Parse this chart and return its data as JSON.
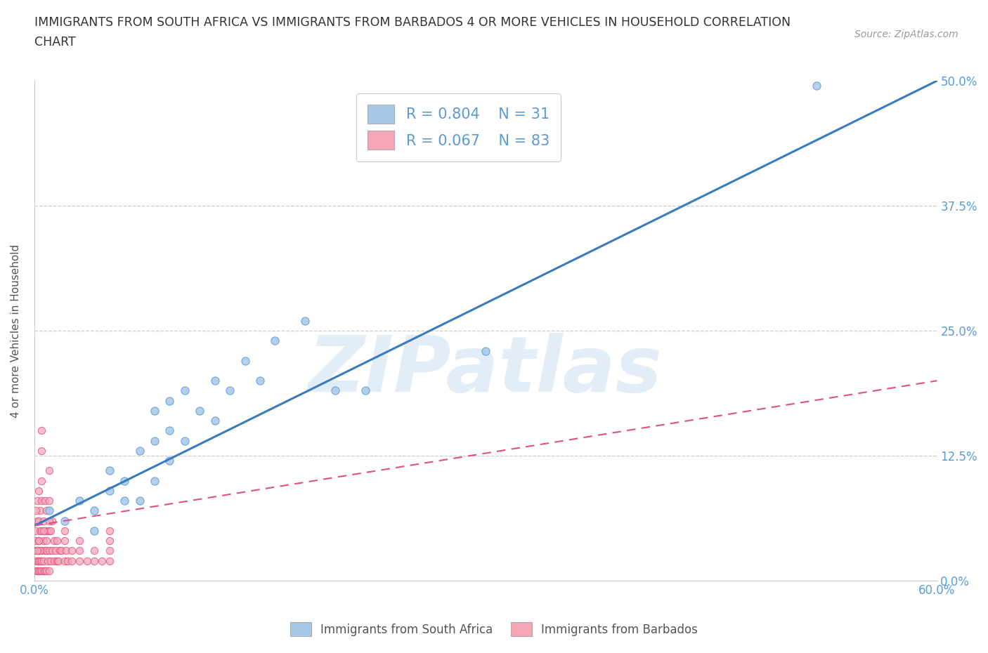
{
  "title_line1": "IMMIGRANTS FROM SOUTH AFRICA VS IMMIGRANTS FROM BARBADOS 4 OR MORE VEHICLES IN HOUSEHOLD CORRELATION",
  "title_line2": "CHART",
  "source": "Source: ZipAtlas.com",
  "ylabel": "4 or more Vehicles in Household",
  "xlim": [
    0.0,
    0.6
  ],
  "ylim": [
    0.0,
    0.5
  ],
  "xticks": [
    0.0,
    0.1,
    0.2,
    0.3,
    0.4,
    0.5,
    0.6
  ],
  "xtick_labels": [
    "0.0%",
    "",
    "",
    "",
    "",
    "",
    "60.0%"
  ],
  "yticks": [
    0.0,
    0.125,
    0.25,
    0.375,
    0.5
  ],
  "ytick_labels": [
    "0.0%",
    "12.5%",
    "25.0%",
    "37.5%",
    "50.0%"
  ],
  "blue_fill": "#a8c8e8",
  "blue_edge": "#5b9bd5",
  "pink_fill": "#f4a7b9",
  "pink_edge": "#e05080",
  "blue_line_color": "#3a7abf",
  "pink_line_color": "#e06080",
  "legend_R1": "R = 0.804",
  "legend_N1": "N = 31",
  "legend_R2": "R = 0.067",
  "legend_N2": "N = 83",
  "watermark": "ZIPatlas",
  "label1": "Immigrants from South Africa",
  "label2": "Immigrants from Barbados",
  "blue_x": [
    0.01,
    0.02,
    0.03,
    0.04,
    0.04,
    0.05,
    0.05,
    0.06,
    0.06,
    0.07,
    0.07,
    0.08,
    0.08,
    0.08,
    0.09,
    0.09,
    0.09,
    0.1,
    0.1,
    0.11,
    0.12,
    0.12,
    0.13,
    0.14,
    0.15,
    0.16,
    0.18,
    0.2,
    0.22,
    0.3,
    0.52
  ],
  "blue_y": [
    0.07,
    0.06,
    0.08,
    0.05,
    0.07,
    0.09,
    0.11,
    0.08,
    0.1,
    0.08,
    0.13,
    0.1,
    0.14,
    0.17,
    0.12,
    0.15,
    0.18,
    0.14,
    0.19,
    0.17,
    0.16,
    0.2,
    0.19,
    0.22,
    0.2,
    0.24,
    0.26,
    0.19,
    0.19,
    0.23,
    0.495
  ],
  "pink_x": [
    0.001,
    0.001,
    0.001,
    0.001,
    0.001,
    0.002,
    0.002,
    0.002,
    0.002,
    0.002,
    0.003,
    0.003,
    0.003,
    0.003,
    0.003,
    0.003,
    0.004,
    0.004,
    0.004,
    0.004,
    0.005,
    0.005,
    0.005,
    0.005,
    0.005,
    0.005,
    0.005,
    0.005,
    0.006,
    0.006,
    0.006,
    0.006,
    0.007,
    0.007,
    0.007,
    0.007,
    0.008,
    0.008,
    0.008,
    0.009,
    0.009,
    0.01,
    0.01,
    0.01,
    0.01,
    0.01,
    0.011,
    0.011,
    0.012,
    0.012,
    0.013,
    0.013,
    0.014,
    0.015,
    0.015,
    0.016,
    0.017,
    0.018,
    0.02,
    0.02,
    0.021,
    0.022,
    0.025,
    0.025,
    0.03,
    0.03,
    0.035,
    0.04,
    0.045,
    0.05,
    0.05,
    0.05,
    0.05,
    0.04,
    0.03,
    0.02,
    0.01,
    0.008,
    0.006,
    0.004,
    0.003,
    0.002,
    0.001
  ],
  "pink_y": [
    0.01,
    0.02,
    0.03,
    0.04,
    0.05,
    0.01,
    0.02,
    0.03,
    0.06,
    0.08,
    0.01,
    0.02,
    0.03,
    0.04,
    0.06,
    0.09,
    0.01,
    0.02,
    0.05,
    0.07,
    0.01,
    0.02,
    0.03,
    0.05,
    0.08,
    0.1,
    0.13,
    0.15,
    0.01,
    0.02,
    0.04,
    0.06,
    0.01,
    0.03,
    0.05,
    0.08,
    0.01,
    0.03,
    0.07,
    0.02,
    0.05,
    0.01,
    0.03,
    0.05,
    0.08,
    0.11,
    0.02,
    0.05,
    0.03,
    0.06,
    0.02,
    0.04,
    0.03,
    0.02,
    0.04,
    0.02,
    0.03,
    0.03,
    0.02,
    0.04,
    0.03,
    0.02,
    0.03,
    0.02,
    0.03,
    0.02,
    0.02,
    0.02,
    0.02,
    0.02,
    0.03,
    0.04,
    0.05,
    0.03,
    0.04,
    0.05,
    0.06,
    0.04,
    0.05,
    0.03,
    0.04,
    0.03,
    0.07
  ],
  "blue_line_x0": 0.0,
  "blue_line_x1": 0.6,
  "blue_line_y0": 0.055,
  "blue_line_y1": 0.5,
  "pink_line_x0": 0.0,
  "pink_line_x1": 0.6,
  "pink_line_y0": 0.055,
  "pink_line_y1": 0.2
}
